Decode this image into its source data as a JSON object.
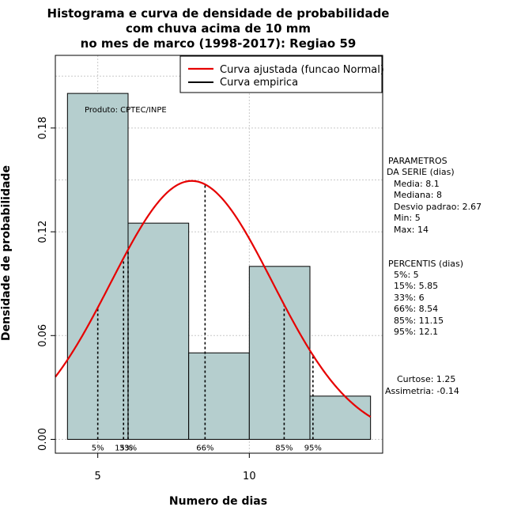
{
  "chart_data": {
    "type": "histogram",
    "title_lines": [
      "Histograma e curva de densidade de probabilidade",
      "com chuva acima de 10 mm",
      "no mes de marco (1998-2017): Regiao 59"
    ],
    "xlabel": "Numero de dias",
    "ylabel": "Densidade de probabilidade",
    "xlim": [
      3.6,
      14.4
    ],
    "ylim": [
      -0.008,
      0.222
    ],
    "x_ticks": [
      5,
      10
    ],
    "y_ticks": [
      0.0,
      0.06,
      0.12,
      0.18
    ],
    "y_tick_labels": [
      "0.00",
      "0.06",
      "0.12",
      "0.18"
    ],
    "grid": true,
    "bars": [
      {
        "x0": 4,
        "x1": 6,
        "density": 0.2
      },
      {
        "x0": 6,
        "x1": 8,
        "density": 0.125
      },
      {
        "x0": 8,
        "x1": 10,
        "density": 0.05
      },
      {
        "x0": 10,
        "x1": 12,
        "density": 0.1
      },
      {
        "x0": 12,
        "x1": 14,
        "density": 0.025
      }
    ],
    "normal_curve": {
      "name": "Curva ajustada (funcao Normal)",
      "mean": 8.1,
      "sd": 2.67,
      "color": "#e60000"
    },
    "empirical_curve": {
      "name": "Curva empirica",
      "color": "#000000"
    },
    "percentiles": [
      {
        "label": "5%",
        "x": 5
      },
      {
        "label": "15%",
        "x": 5.85
      },
      {
        "label": "33%",
        "x": 6
      },
      {
        "label": "66%",
        "x": 8.54
      },
      {
        "label": "85%",
        "x": 11.15
      },
      {
        "label": "95%",
        "x": 12.1
      }
    ],
    "annotation": "Produto: CPTEC/INPE",
    "legend_position": "top-right",
    "bar_color": "#b5cece"
  },
  "side_panel": {
    "parametros_title": [
      "PARAMETROS",
      "DA SERIE (dias)"
    ],
    "parametros": [
      "Media: 8.1",
      "Mediana: 8",
      "Desvio padrao: 2.67",
      "Min: 5",
      "Max: 14"
    ],
    "percentis_title": "PERCENTIS (dias)",
    "percentis": [
      "5%: 5",
      "15%: 5.85",
      "33%: 6",
      "66%: 8.54",
      "85%: 11.15",
      "95%: 12.1"
    ],
    "curtose": "Curtose: 1.25",
    "assimetria": "Assimetria: -0.14"
  }
}
